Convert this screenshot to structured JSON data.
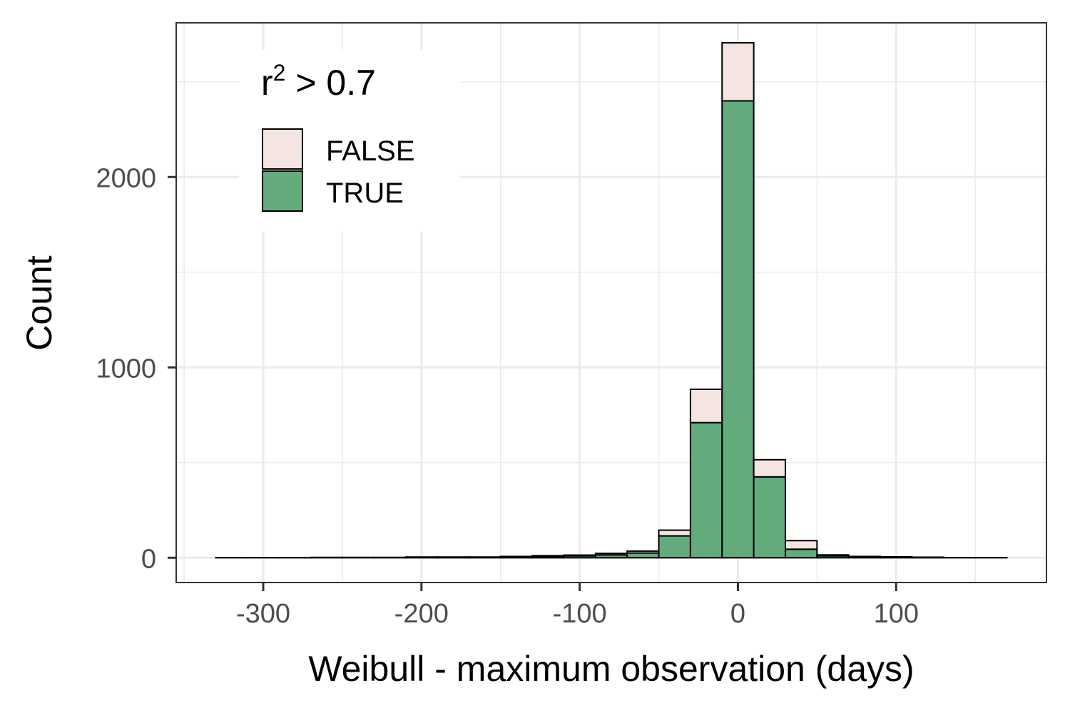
{
  "chart_data": {
    "type": "bar",
    "subtype": "stacked-histogram",
    "xlabel": "Weibull - maximum observation (days)",
    "ylabel": "Count",
    "xlim": [
      -355,
      195
    ],
    "ylim": [
      -130,
      2810
    ],
    "x_ticks": [
      -300,
      -200,
      -100,
      0,
      100
    ],
    "x_tick_labels": [
      "-300",
      "-200",
      "-100",
      "0",
      "100"
    ],
    "y_ticks": [
      0,
      1000,
      2000
    ],
    "y_tick_labels": [
      "0",
      "1000",
      "2000"
    ],
    "grid": true,
    "bin_width": 20,
    "bin_starts": [
      -330,
      -310,
      -290,
      -270,
      -250,
      -230,
      -210,
      -190,
      -170,
      -150,
      -130,
      -110,
      -90,
      -70,
      -50,
      -30,
      -10,
      10,
      30,
      50,
      70,
      90,
      110,
      130,
      150
    ],
    "series": [
      {
        "name": "TRUE",
        "color": "#63ab7d",
        "values": [
          1,
          1,
          1,
          2,
          2,
          2,
          3,
          3,
          3,
          5,
          8,
          10,
          15,
          25,
          115,
          710,
          2400,
          425,
          45,
          10,
          5,
          4,
          2,
          1,
          1
        ]
      },
      {
        "name": "FALSE",
        "color": "#f4e4e2",
        "values": [
          0,
          0,
          0,
          0,
          0,
          0,
          1,
          1,
          1,
          2,
          3,
          4,
          8,
          10,
          30,
          175,
          305,
          90,
          45,
          5,
          2,
          1,
          1,
          0,
          0
        ]
      }
    ],
    "legend": {
      "title_base": "r",
      "title_superscript": "2",
      "title_rest": " > 0.7",
      "position": "top-left",
      "entries": [
        "FALSE",
        "TRUE"
      ]
    }
  }
}
